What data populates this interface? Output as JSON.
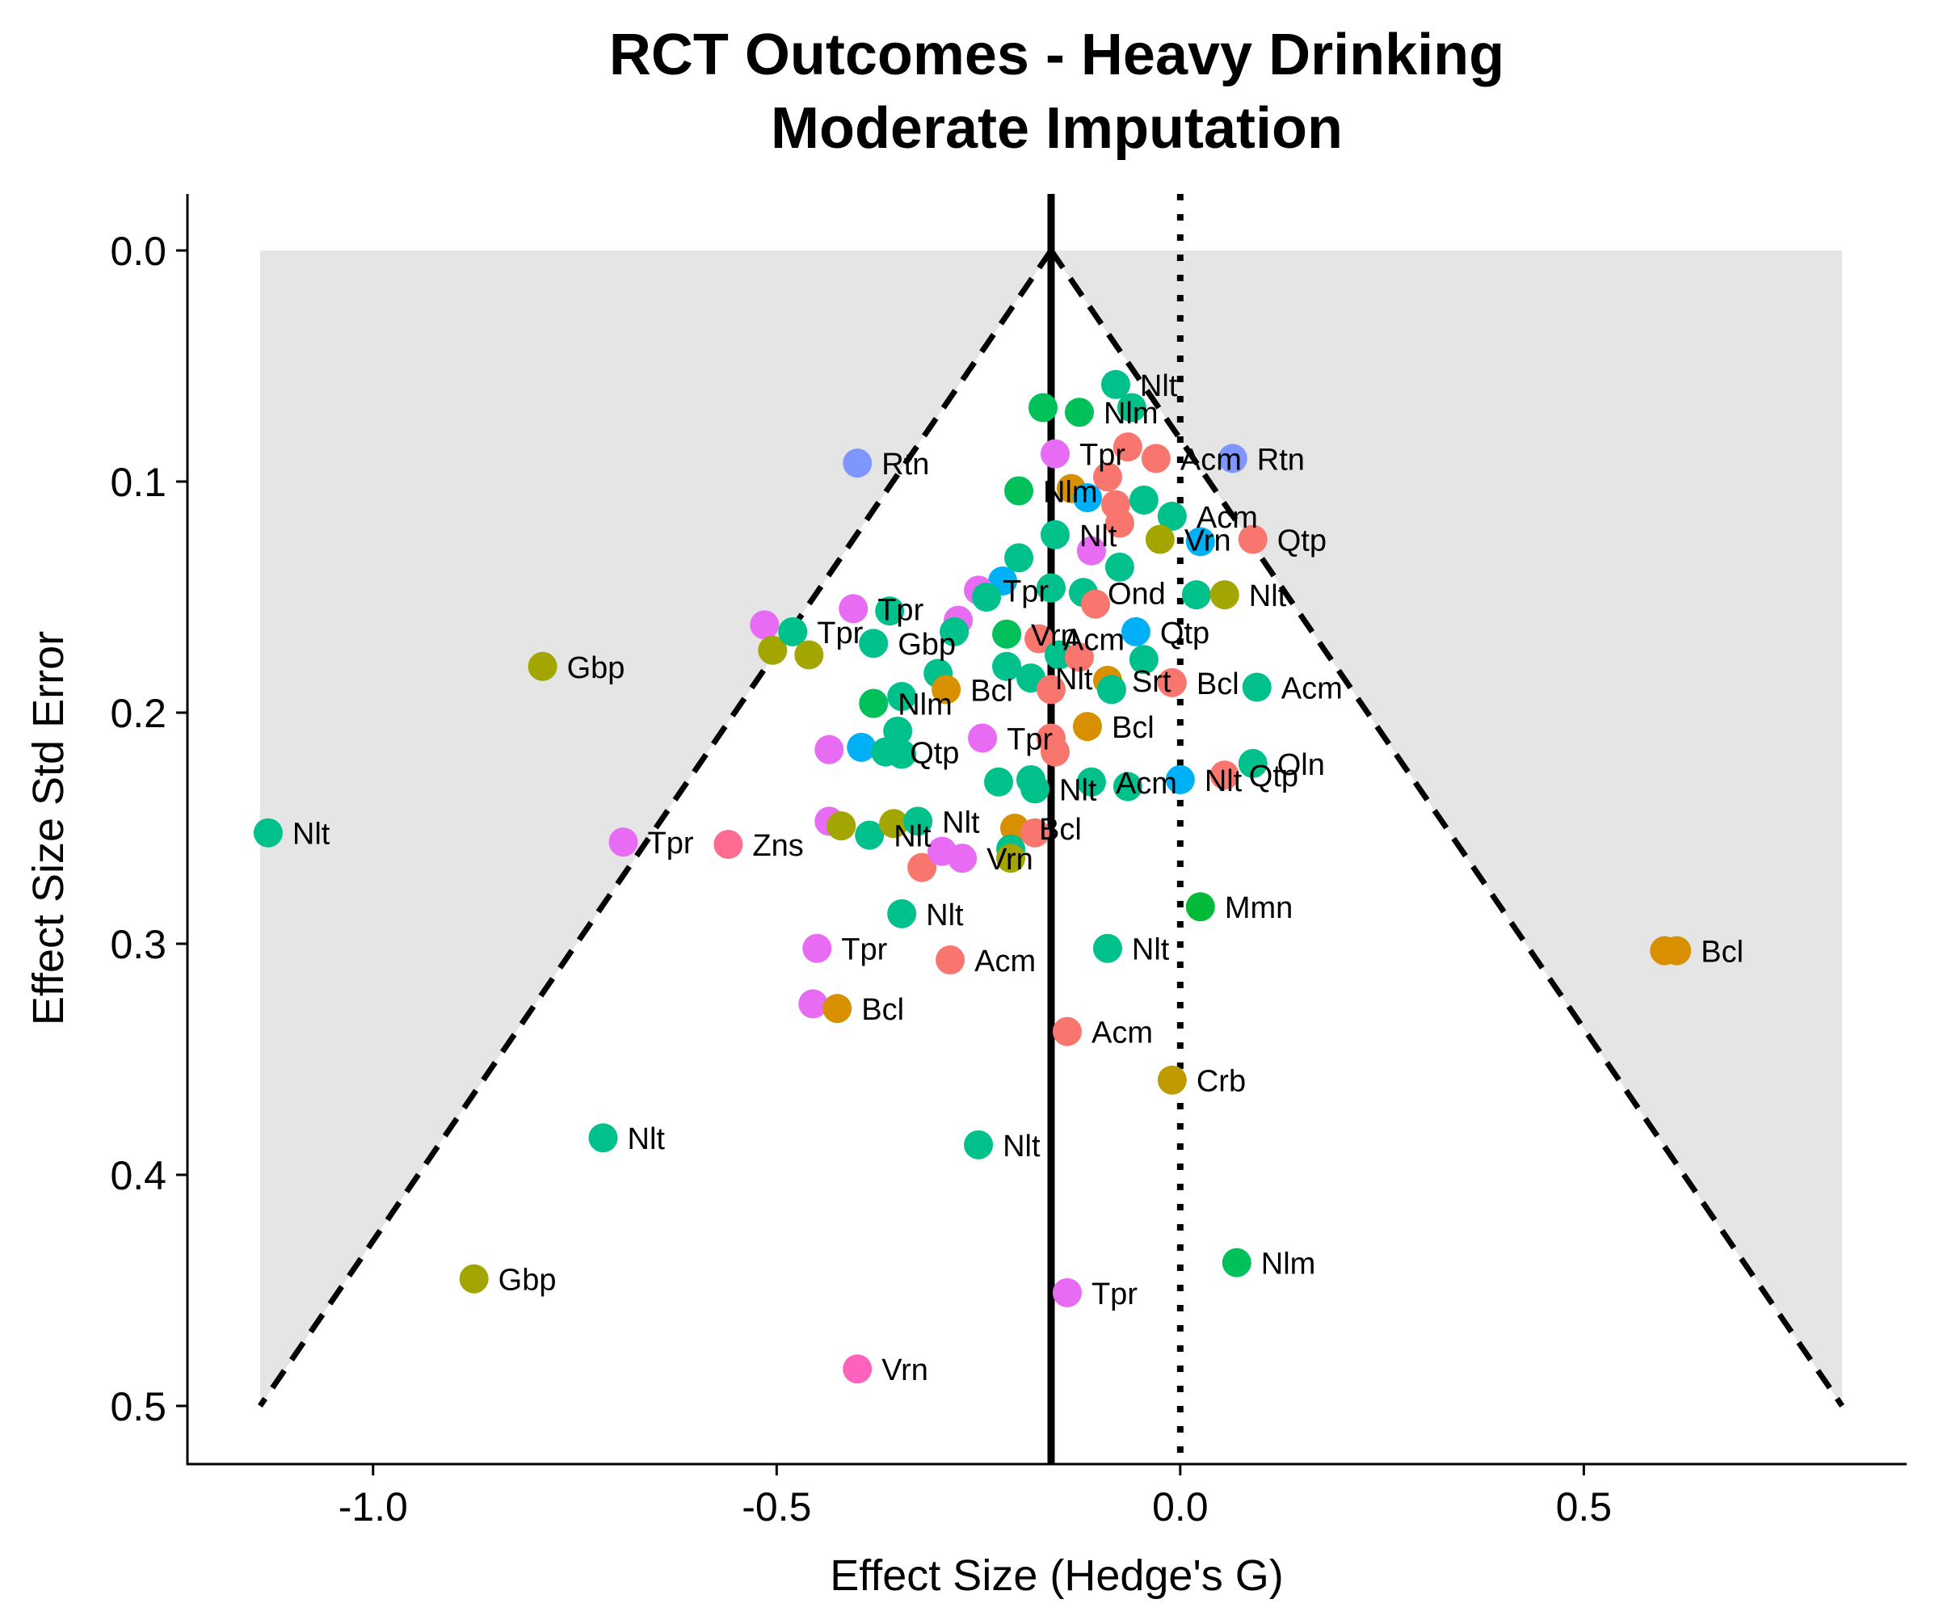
{
  "colors": {
    "Acm": "#F8766D",
    "Bcl": "#D89000",
    "Crb": "#C09B00",
    "Gbp": "#A3A500",
    "Mmn": "#00BA38",
    "Nlm": "#00C05A",
    "Nlt": "#00C08B",
    "Oln": "#00BFC4",
    "Qtp": "#00B0F6",
    "Rtn": "#7F96FF",
    "Ond": "#E76BF3",
    "Srt": "#F564E3",
    "Tpr": "#E76BF3",
    "Vrn": "#FF62BC",
    "Zns": "#FF6C91",
    "shade": "#E5E5E5",
    "funnel": "#000000"
  },
  "chart_data": {
    "type": "scatter",
    "title_lines": [
      "RCT Outcomes - Heavy Drinking",
      "Moderate Imputation"
    ],
    "xlabel": "Effect Size (Hedge's G)",
    "ylabel": "Effect Size Std Error",
    "xlim": [
      -1.23,
      0.9
    ],
    "ylim": [
      0.5,
      0
    ],
    "y_reversed": true,
    "x_ticks": [
      -1.0,
      -0.5,
      0.0,
      0.5
    ],
    "x_tick_labels": [
      "-1.0",
      "-0.5",
      "0.0",
      "0.5"
    ],
    "y_ticks": [
      0.0,
      0.1,
      0.2,
      0.3,
      0.4,
      0.5
    ],
    "y_tick_labels": [
      "0.0",
      "0.1",
      "0.2",
      "0.3",
      "0.4",
      "0.5"
    ],
    "pooled_effect": -0.16,
    "null_effect": 0.0,
    "funnel_se_max": 0.5,
    "funnel_multiplier": 1.96,
    "grid": false,
    "legend": "none",
    "points": [
      {
        "drug": "Nlt",
        "x": -1.13,
        "y": 0.252,
        "label": "Nlt"
      },
      {
        "drug": "Gbp",
        "x": -0.79,
        "y": 0.18,
        "label": "Gbp"
      },
      {
        "drug": "Rtn",
        "x": -0.4,
        "y": 0.092,
        "label": "Rtn"
      },
      {
        "drug": "Rtn",
        "x": 0.065,
        "y": 0.09,
        "label": "Rtn"
      },
      {
        "drug": "Nlt",
        "x": -0.08,
        "y": 0.058,
        "label": "Nlt"
      },
      {
        "drug": "Nlt",
        "x": -0.06,
        "y": 0.068
      },
      {
        "drug": "Nlm",
        "x": -0.17,
        "y": 0.068
      },
      {
        "drug": "Nlm",
        "x": -0.125,
        "y": 0.07,
        "label": "Nlm"
      },
      {
        "drug": "Tpr",
        "x": -0.155,
        "y": 0.088,
        "label": "Tpr"
      },
      {
        "drug": "Acm",
        "x": -0.065,
        "y": 0.085
      },
      {
        "drug": "Acm",
        "x": -0.03,
        "y": 0.09,
        "label": "Acm"
      },
      {
        "drug": "Acm",
        "x": -0.09,
        "y": 0.098
      },
      {
        "drug": "Bcl",
        "x": -0.135,
        "y": 0.103
      },
      {
        "drug": "Nlm",
        "x": -0.2,
        "y": 0.104,
        "label": "Nlm"
      },
      {
        "drug": "Qtp",
        "x": -0.115,
        "y": 0.107
      },
      {
        "drug": "Acm",
        "x": -0.08,
        "y": 0.11
      },
      {
        "drug": "Nlt",
        "x": -0.045,
        "y": 0.108
      },
      {
        "drug": "Nlt",
        "x": -0.01,
        "y": 0.115,
        "label": "Acm"
      },
      {
        "drug": "Acm",
        "x": -0.075,
        "y": 0.118
      },
      {
        "drug": "Nlt",
        "x": -0.155,
        "y": 0.123,
        "label": "Nlt"
      },
      {
        "drug": "Tpr",
        "x": -0.11,
        "y": 0.13
      },
      {
        "drug": "Gbp",
        "x": -0.025,
        "y": 0.125,
        "label": "Vrn"
      },
      {
        "drug": "Qtp",
        "x": 0.025,
        "y": 0.126
      },
      {
        "drug": "Acm",
        "x": 0.09,
        "y": 0.125,
        "label": "Qtp"
      },
      {
        "drug": "Nlt",
        "x": -0.2,
        "y": 0.133
      },
      {
        "drug": "Nlt",
        "x": -0.075,
        "y": 0.137
      },
      {
        "drug": "Qtp",
        "x": -0.22,
        "y": 0.143
      },
      {
        "drug": "Tpr",
        "x": -0.25,
        "y": 0.147,
        "label": "Tpr"
      },
      {
        "drug": "Nlt",
        "x": -0.24,
        "y": 0.15
      },
      {
        "drug": "Nlt",
        "x": -0.16,
        "y": 0.146
      },
      {
        "drug": "Nlt",
        "x": -0.12,
        "y": 0.148,
        "label": "Ond"
      },
      {
        "drug": "Acm",
        "x": -0.105,
        "y": 0.153
      },
      {
        "drug": "Nlt",
        "x": 0.02,
        "y": 0.149
      },
      {
        "drug": "Gbp",
        "x": 0.055,
        "y": 0.149,
        "label": "Nlt"
      },
      {
        "drug": "Tpr",
        "x": -0.405,
        "y": 0.155,
        "label": "Tpr"
      },
      {
        "drug": "Nlt",
        "x": -0.36,
        "y": 0.156
      },
      {
        "drug": "Tpr",
        "x": -0.275,
        "y": 0.16
      },
      {
        "drug": "Nlt",
        "x": -0.28,
        "y": 0.165
      },
      {
        "drug": "Nlm",
        "x": -0.215,
        "y": 0.166,
        "label": "Vrn"
      },
      {
        "drug": "Acm",
        "x": -0.175,
        "y": 0.168,
        "label": "Acm"
      },
      {
        "drug": "Qtp",
        "x": -0.055,
        "y": 0.165,
        "label": "Qtp"
      },
      {
        "drug": "Tpr",
        "x": -0.515,
        "y": 0.162
      },
      {
        "drug": "Gbp",
        "x": -0.505,
        "y": 0.173
      },
      {
        "drug": "Nlt",
        "x": -0.48,
        "y": 0.165,
        "label": "Tpr"
      },
      {
        "drug": "Gbp",
        "x": -0.46,
        "y": 0.175
      },
      {
        "drug": "Nlt",
        "x": -0.38,
        "y": 0.17,
        "label": "Gbp"
      },
      {
        "drug": "Nlt",
        "x": -0.215,
        "y": 0.18
      },
      {
        "drug": "Nlt",
        "x": -0.15,
        "y": 0.175
      },
      {
        "drug": "Acm",
        "x": -0.125,
        "y": 0.176
      },
      {
        "drug": "Nlt",
        "x": -0.045,
        "y": 0.177
      },
      {
        "drug": "Nlt",
        "x": -0.3,
        "y": 0.183
      },
      {
        "drug": "Bcl",
        "x": -0.29,
        "y": 0.19,
        "label": "Bcl"
      },
      {
        "drug": "Nlt",
        "x": -0.185,
        "y": 0.185,
        "label": "Nlt"
      },
      {
        "drug": "Acm",
        "x": -0.16,
        "y": 0.19
      },
      {
        "drug": "Bcl",
        "x": -0.09,
        "y": 0.186,
        "label": "Srt"
      },
      {
        "drug": "Nlt",
        "x": -0.085,
        "y": 0.19
      },
      {
        "drug": "Acm",
        "x": -0.01,
        "y": 0.187,
        "label": "Bcl"
      },
      {
        "drug": "Nlt",
        "x": 0.095,
        "y": 0.189,
        "label": "Acm"
      },
      {
        "drug": "Nlt",
        "x": -0.345,
        "y": 0.193
      },
      {
        "drug": "Nlm",
        "x": -0.38,
        "y": 0.196,
        "label": "Nlm"
      },
      {
        "drug": "Bcl",
        "x": -0.115,
        "y": 0.206,
        "label": "Bcl"
      },
      {
        "drug": "Nlt",
        "x": -0.35,
        "y": 0.208
      },
      {
        "drug": "Tpr",
        "x": -0.245,
        "y": 0.211,
        "label": "Tpr"
      },
      {
        "drug": "Acm",
        "x": -0.16,
        "y": 0.211
      },
      {
        "drug": "Acm",
        "x": -0.155,
        "y": 0.217
      },
      {
        "drug": "Tpr",
        "x": -0.435,
        "y": 0.216
      },
      {
        "drug": "Qtp",
        "x": -0.395,
        "y": 0.215
      },
      {
        "drug": "Nlt",
        "x": -0.365,
        "y": 0.217,
        "label": "Qtp"
      },
      {
        "drug": "Nlt",
        "x": -0.345,
        "y": 0.218
      },
      {
        "drug": "Nlt",
        "x": -0.225,
        "y": 0.23
      },
      {
        "drug": "Nlt",
        "x": -0.185,
        "y": 0.229
      },
      {
        "drug": "Nlt",
        "x": -0.18,
        "y": 0.233,
        "label": "Nlt"
      },
      {
        "drug": "Nlt",
        "x": -0.11,
        "y": 0.23,
        "label": "Acm"
      },
      {
        "drug": "Nlt",
        "x": -0.065,
        "y": 0.232
      },
      {
        "drug": "Qtp",
        "x": 0.0,
        "y": 0.229,
        "label": "Nlt"
      },
      {
        "drug": "Acm",
        "x": 0.055,
        "y": 0.227,
        "label": "Qtp"
      },
      {
        "drug": "Nlt",
        "x": 0.09,
        "y": 0.222,
        "label": "Oln"
      },
      {
        "drug": "Tpr",
        "x": -0.435,
        "y": 0.247
      },
      {
        "drug": "Gbp",
        "x": -0.42,
        "y": 0.249
      },
      {
        "drug": "Nlt",
        "x": -0.385,
        "y": 0.253,
        "label": "Nlt"
      },
      {
        "drug": "Gbp",
        "x": -0.355,
        "y": 0.248
      },
      {
        "drug": "Nlt",
        "x": -0.325,
        "y": 0.247,
        "label": "Nlt"
      },
      {
        "drug": "Bcl",
        "x": -0.205,
        "y": 0.25,
        "label": "Bcl"
      },
      {
        "drug": "Acm",
        "x": -0.18,
        "y": 0.252
      },
      {
        "drug": "Tpr",
        "x": -0.69,
        "y": 0.256,
        "label": "Tpr"
      },
      {
        "drug": "Zns",
        "x": -0.56,
        "y": 0.257,
        "label": "Zns"
      },
      {
        "drug": "Acm",
        "x": -0.32,
        "y": 0.267
      },
      {
        "drug": "Tpr",
        "x": -0.295,
        "y": 0.26
      },
      {
        "drug": "Tpr",
        "x": -0.27,
        "y": 0.263,
        "label": "Vrn"
      },
      {
        "drug": "Nlt",
        "x": -0.21,
        "y": 0.259
      },
      {
        "drug": "Gbp",
        "x": -0.21,
        "y": 0.263
      },
      {
        "drug": "Nlt",
        "x": -0.345,
        "y": 0.287,
        "label": "Nlt"
      },
      {
        "drug": "Mmn",
        "x": 0.025,
        "y": 0.284,
        "label": "Mmn"
      },
      {
        "drug": "Tpr",
        "x": -0.45,
        "y": 0.302,
        "label": "Tpr"
      },
      {
        "drug": "Acm",
        "x": -0.285,
        "y": 0.307,
        "label": "Acm"
      },
      {
        "drug": "Nlt",
        "x": -0.09,
        "y": 0.302,
        "label": "Nlt"
      },
      {
        "drug": "Bcl",
        "x": 0.6,
        "y": 0.303
      },
      {
        "drug": "Bcl",
        "x": 0.615,
        "y": 0.303,
        "label": "Bcl"
      },
      {
        "drug": "Tpr",
        "x": -0.455,
        "y": 0.326
      },
      {
        "drug": "Bcl",
        "x": -0.425,
        "y": 0.328,
        "label": "Bcl"
      },
      {
        "drug": "Acm",
        "x": -0.14,
        "y": 0.338,
        "label": "Acm"
      },
      {
        "drug": "Crb",
        "x": -0.01,
        "y": 0.359,
        "label": "Crb"
      },
      {
        "drug": "Nlt",
        "x": -0.715,
        "y": 0.384,
        "label": "Nlt"
      },
      {
        "drug": "Nlt",
        "x": -0.25,
        "y": 0.387,
        "label": "Nlt"
      },
      {
        "drug": "Gbp",
        "x": -0.875,
        "y": 0.445,
        "label": "Gbp"
      },
      {
        "drug": "Nlm",
        "x": 0.07,
        "y": 0.438,
        "label": "Nlm"
      },
      {
        "drug": "Tpr",
        "x": -0.14,
        "y": 0.451,
        "label": "Tpr"
      },
      {
        "drug": "Vrn",
        "x": -0.4,
        "y": 0.484,
        "label": "Vrn"
      }
    ]
  }
}
